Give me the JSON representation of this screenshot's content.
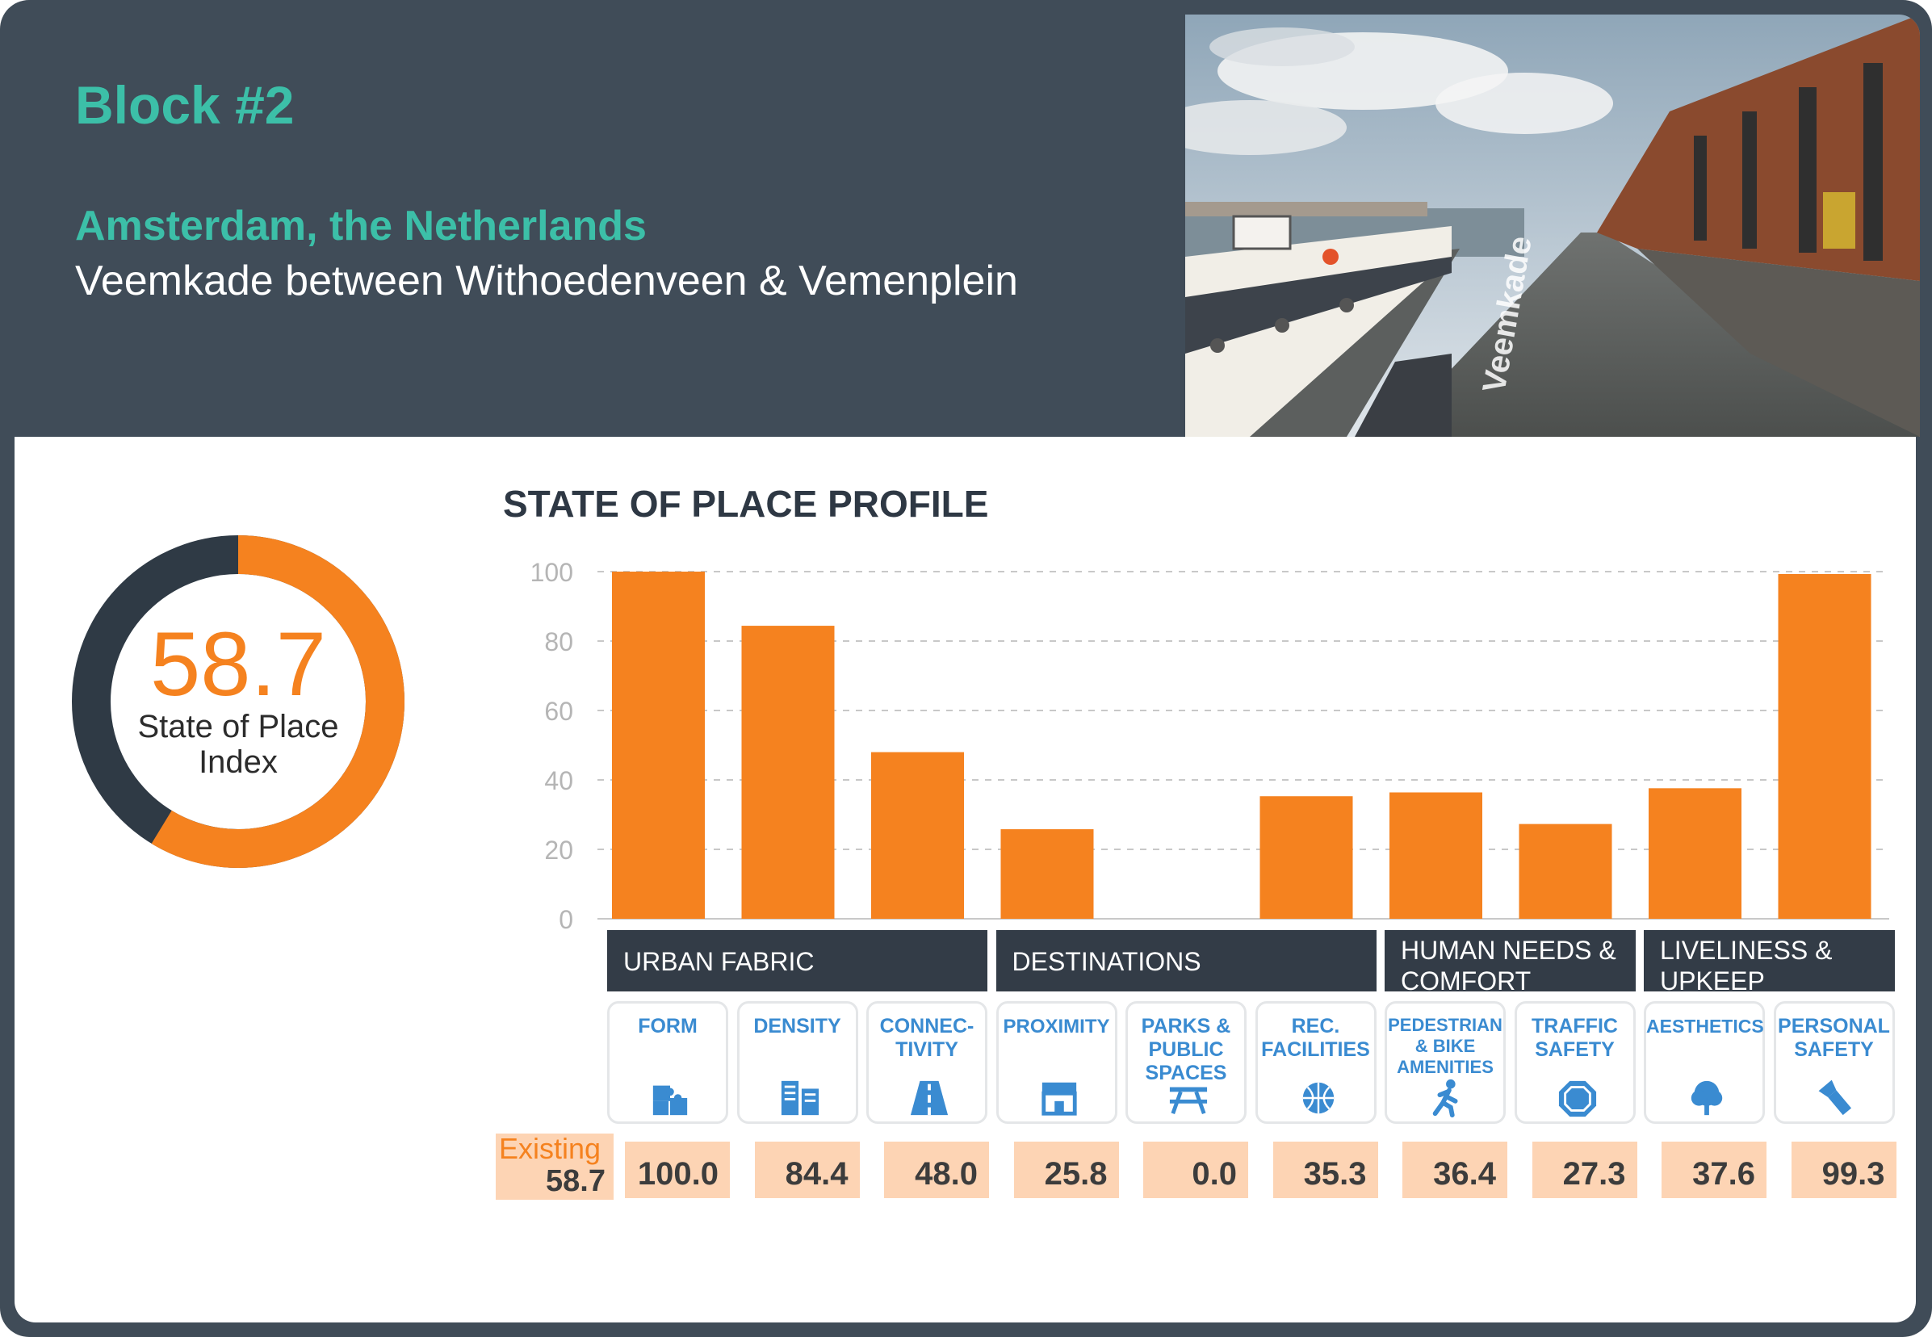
{
  "header": {
    "title": "Block #2",
    "city": "Amsterdam, the Netherlands",
    "street": "Veemkade between Withoedenveen & Vemenplein"
  },
  "photo": {
    "street_sign": "Veemkade"
  },
  "index": {
    "value": "58.7",
    "value_num": 58.7,
    "label": "State of Place Index",
    "color_fill": "#f5821f",
    "color_rest": "#2f3a45"
  },
  "chart_title": "STATE OF PLACE PROFILE",
  "chart_data": {
    "type": "bar",
    "title": "STATE OF PLACE PROFILE",
    "categories": [
      "FORM",
      "DENSITY",
      "CONNEC-TIVITY",
      "PROXIMITY",
      "PARKS & PUBLIC SPACES",
      "REC. FACILITIES",
      "PEDESTRIAN & BIKE AMENITIES",
      "TRAFFIC SAFETY",
      "AESTHETICS",
      "PERSONAL SAFETY"
    ],
    "values": [
      100.0,
      84.4,
      48.0,
      25.8,
      0.0,
      35.3,
      36.4,
      27.3,
      37.6,
      99.3
    ],
    "yticks": [
      "0",
      "20",
      "40",
      "60",
      "80",
      "100"
    ],
    "ylim": [
      0,
      100
    ],
    "grid": true,
    "bar_color": "#f5821f"
  },
  "groups": [
    {
      "label": "URBAN FABRIC",
      "span": [
        0,
        2
      ]
    },
    {
      "label": "DESTINATIONS",
      "span": [
        3,
        5
      ]
    },
    {
      "label": "HUMAN NEEDS & COMFORT",
      "span": [
        6,
        7
      ]
    },
    {
      "label": "LIVELINESS & UPKEEP",
      "span": [
        8,
        9
      ]
    }
  ],
  "categories": [
    {
      "label": "FORM",
      "icon": "puzzle-icon",
      "score": "100.0"
    },
    {
      "label": "DENSITY",
      "icon": "buildings-icon",
      "score": "84.4"
    },
    {
      "label": "CONNEC-TIVITY",
      "icon": "road-icon",
      "score": "48.0"
    },
    {
      "label": "PROXIMITY",
      "icon": "storefront-icon",
      "score": "25.8"
    },
    {
      "label": "PARKS & PUBLIC SPACES",
      "icon": "picnic-table-icon",
      "score": "0.0"
    },
    {
      "label": "REC. FACILITIES",
      "icon": "basketball-icon",
      "score": "35.3"
    },
    {
      "label": "PEDESTRIAN & BIKE AMENITIES",
      "icon": "pedestrian-icon",
      "score": "36.4"
    },
    {
      "label": "TRAFFIC SAFETY",
      "icon": "stop-sign-icon",
      "score": "27.3"
    },
    {
      "label": "AESTHETICS",
      "icon": "tree-icon",
      "score": "37.6"
    },
    {
      "label": "PERSONAL SAFETY",
      "icon": "flashlight-icon",
      "score": "99.3"
    }
  ],
  "existing": {
    "label": "Existing",
    "value": "58.7"
  },
  "colors": {
    "header_bg": "#404c58",
    "accent_teal": "#3cbfa8",
    "accent_orange": "#f5821f",
    "group_bg": "#333c47",
    "icon_blue": "#3a8bd1",
    "score_bg": "#fdd4b4"
  }
}
